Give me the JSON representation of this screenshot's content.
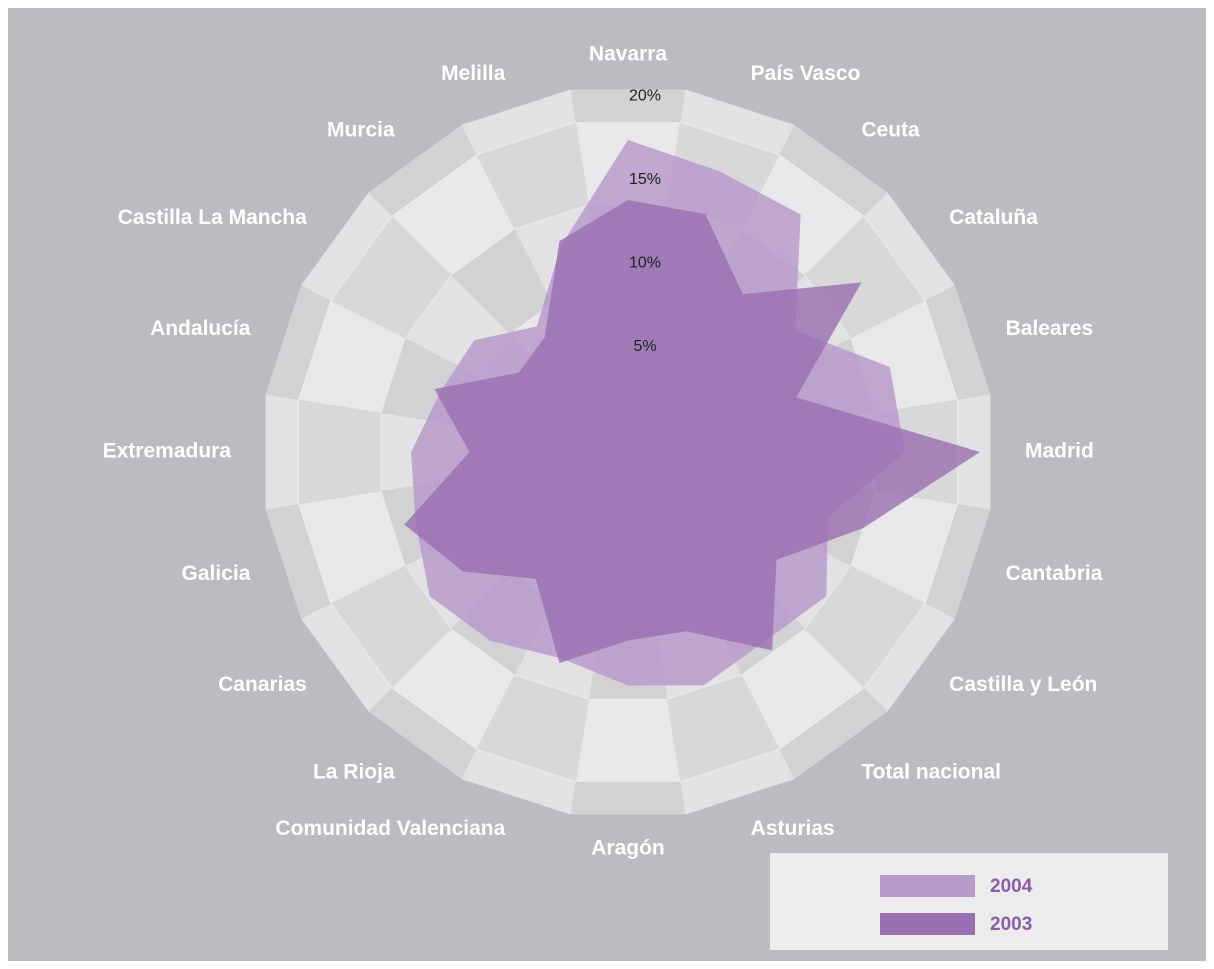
{
  "chart_data": {
    "type": "radar",
    "categories": [
      "Navarra",
      "País Vasco",
      "Ceuta",
      "Cataluña",
      "Baleares",
      "Madrid",
      "Cantabria",
      "Castilla y León",
      "Total nacional",
      "Asturias",
      "Aragón",
      "Comunidad Valenciana",
      "La Rioja",
      "Canarias",
      "Galicia",
      "Extremadura",
      "Andalucía",
      "Castilla La Mancha",
      "Murcia",
      "Melilla"
    ],
    "series": [
      {
        "name": "2004",
        "color": "#b79bcb",
        "values": [
          18.7,
          17.7,
          17.6,
          12.4,
          16.5,
          16.6,
          12.6,
          14.7,
          14.0,
          14.7,
          14.0,
          13.0,
          14.0,
          14.7,
          13.4,
          13.0,
          11.8,
          11.4,
          9.3,
          13.0
        ]
      },
      {
        "name": "2003",
        "color": "#9a6fb2",
        "values": [
          15.1,
          15.0,
          11.7,
          17.3,
          10.6,
          21.1,
          14.8,
          11.0,
          14.7,
          11.3,
          11.3,
          13.3,
          9.4,
          12.2,
          14.1,
          9.5,
          12.2,
          8.1,
          8.5,
          13.3
        ]
      }
    ],
    "ylim": [
      0,
      22
    ],
    "yticks": [
      {
        "value": 5,
        "label": "5%"
      },
      {
        "value": 10,
        "label": "10%"
      },
      {
        "value": 15,
        "label": "15%"
      },
      {
        "value": 20,
        "label": "20%"
      }
    ],
    "legend": "bottom-right"
  }
}
